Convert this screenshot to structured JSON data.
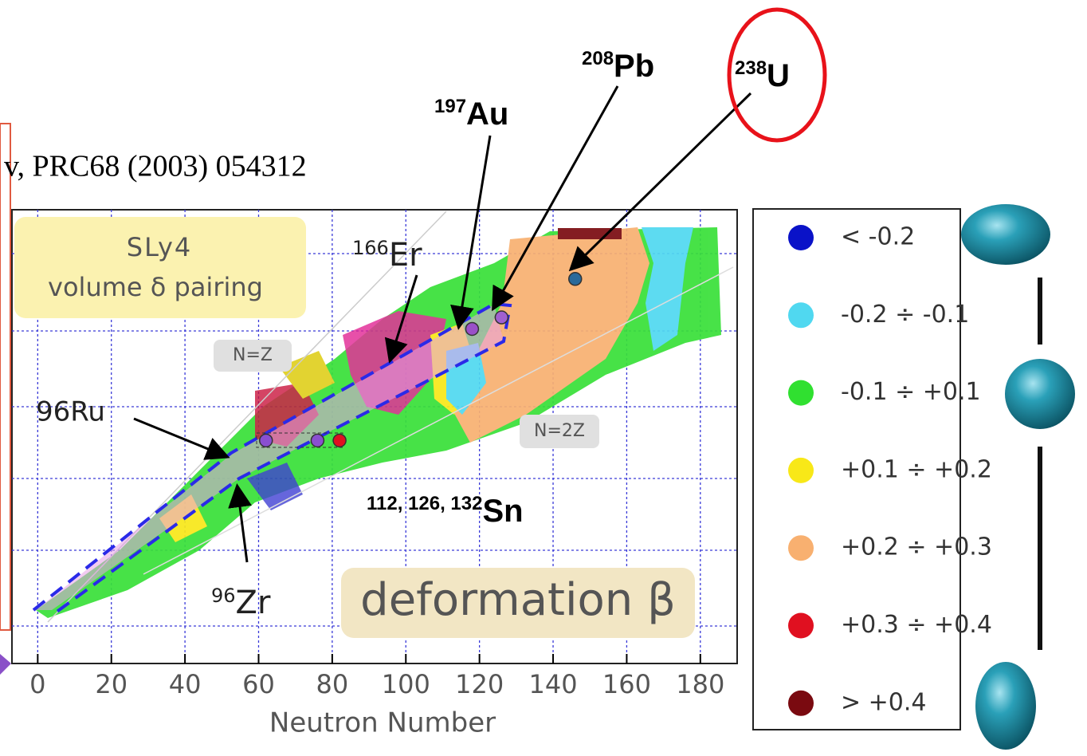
{
  "chart_data": {
    "type": "scatter",
    "citation": "v, PRC68 (2003) 054312",
    "model": "SLy4",
    "pairing": "volume δ pairing",
    "xlabel": "Neutron Number",
    "xlim": [
      -7,
      190
    ],
    "ylim": [
      -8,
      110
    ],
    "xticks": [
      0,
      20,
      40,
      60,
      80,
      100,
      120,
      140,
      160,
      180
    ],
    "x": [
      62,
      76,
      82,
      118,
      126,
      146
    ],
    "y": [
      50,
      50,
      50,
      79,
      82,
      92
    ],
    "point_colors": [
      "#8a4fd0",
      "#8a4fd0",
      "#e01020",
      "#9a50c8",
      "#a060d0",
      "#2a6a9a"
    ],
    "lines": [
      "N=Z",
      "N=2Z"
    ],
    "quantity": "deformation β",
    "annotations": {
      "er": {
        "mass": "166",
        "symbol": "Er"
      },
      "au": {
        "mass": "197",
        "symbol": "Au"
      },
      "pb": {
        "mass": "208",
        "symbol": "Pb"
      },
      "u": {
        "mass": "238",
        "symbol": "U"
      },
      "ru": "96Ru",
      "zr": {
        "mass": "96",
        "symbol": "Zr"
      },
      "sn": {
        "mass": "112, 126, 132",
        "symbol": "Sn"
      }
    },
    "legend": [
      {
        "label": "< -0.2",
        "color": "#0a12c8"
      },
      {
        "label": "-0.2 ÷ -0.1",
        "color": "#50d8f0"
      },
      {
        "label": "-0.1 ÷ +0.1",
        "color": "#30e030"
      },
      {
        "label": "+0.1 ÷ +0.2",
        "color": "#f8e818"
      },
      {
        "label": "+0.2 ÷ +0.3",
        "color": "#f8b070"
      },
      {
        "label": "+0.3 ÷ +0.4",
        "color": "#e01020"
      },
      {
        "label": "> +0.4",
        "color": "#7a0a10"
      }
    ]
  }
}
